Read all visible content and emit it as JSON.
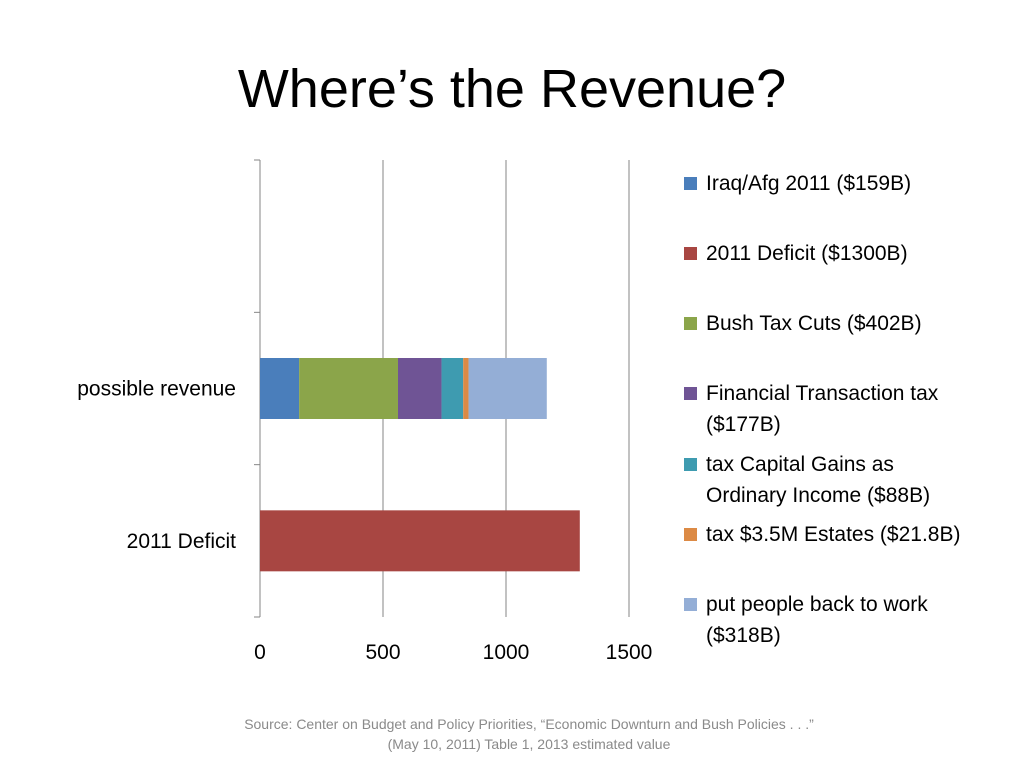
{
  "slide": {
    "title": "Where’s the Revenue?"
  },
  "source": {
    "line1": "Source: Center on Budget and Policy Priorities, “Economic Downturn and Bush Policies . . .”",
    "line2": "(May 10, 2011) Table 1, 2013 estimated value"
  },
  "chart_data": {
    "type": "bar",
    "orientation": "horizontal",
    "stacked": true,
    "title": "",
    "xlabel": "",
    "ylabel": "",
    "categories": [
      "possible revenue",
      "2011 Deficit"
    ],
    "xlim": [
      0,
      1500
    ],
    "x_ticks": [
      "0",
      "500",
      "1000",
      "1500"
    ],
    "grid": "vertical",
    "legend_position": "right",
    "series": [
      {
        "name": "Iraq/Afg 2011 ($159B)",
        "color": "#4a7ebb",
        "values": [
          159,
          0
        ]
      },
      {
        "name": "2011 Deficit ($1300B)",
        "color": "#a84642",
        "values": [
          0,
          1300
        ]
      },
      {
        "name": "Bush Tax Cuts ($402B)",
        "color": "#8ba54a",
        "values": [
          402,
          0
        ]
      },
      {
        "name": "Financial Transaction tax ($177B)",
        "color": "#6f5495",
        "values": [
          177,
          0
        ]
      },
      {
        "name": "tax Capital Gains as Ordinary Income ($88B)",
        "color": "#3e9bb0",
        "values": [
          88,
          0
        ]
      },
      {
        "name": "tax $3.5M Estates ($21.8B)",
        "color": "#dc8a45",
        "values": [
          21.8,
          0
        ]
      },
      {
        "name": "put people back to work ($318B)",
        "color": "#94aed6",
        "values": [
          318,
          0
        ]
      }
    ]
  }
}
